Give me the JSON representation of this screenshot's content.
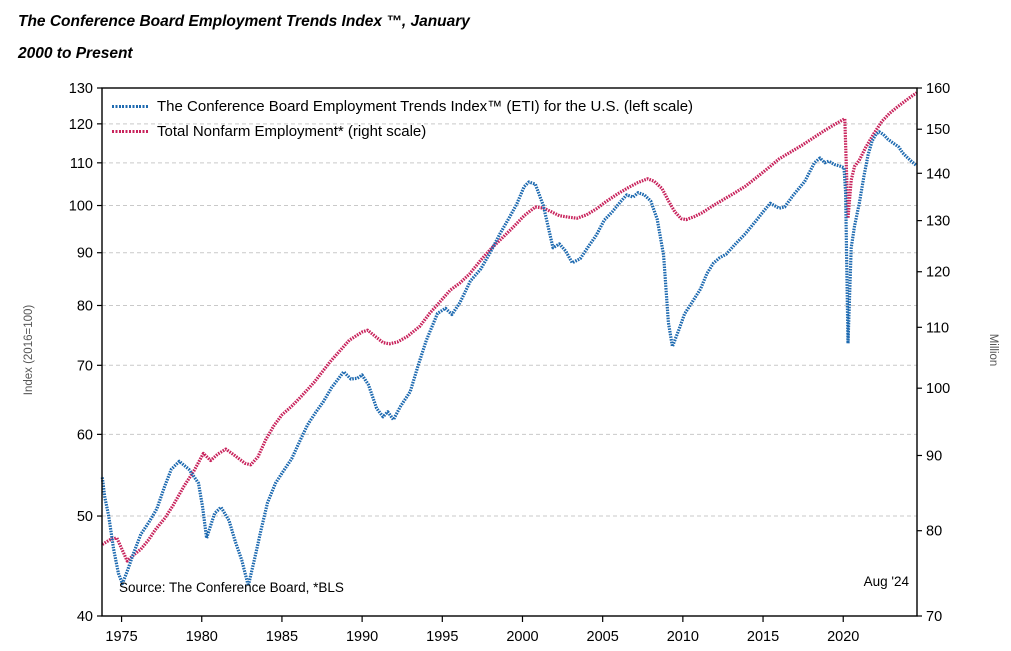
{
  "title": {
    "line1": "The Conference Board Employment Trends Index ™, January",
    "line2": "2000 to Present"
  },
  "legend": {
    "items": [
      {
        "label": "The Conference Board Employment Trends Index™ (ETI) for the U.S. (left scale)",
        "color": "#1e6ab0"
      },
      {
        "label": "Total Nonfarm Employment* (right scale)",
        "color": "#c8235c"
      }
    ]
  },
  "source_note": "Source: The Conference Board, *BLS",
  "end_label": "Aug '24",
  "colors": {
    "eti_line": "#1e6ab0",
    "nonfarm_line": "#c8235c",
    "gridline": "#c9c9c9",
    "axis_box": "#000000"
  },
  "chart_data": {
    "type": "line",
    "title": "The Conference Board Employment Trends Index ™, January 2000 to Present",
    "x_axis": {
      "min": 1973.78,
      "max": 2024.6,
      "ticks": [
        1975,
        1980,
        1985,
        1990,
        1995,
        2000,
        2005,
        2010,
        2015,
        2020
      ]
    },
    "left_axis": {
      "label": "Index (2016=100)",
      "scale": "log",
      "min": 40,
      "max": 130,
      "ticks": [
        130,
        120,
        110,
        100,
        90,
        80,
        70,
        60,
        50,
        40
      ]
    },
    "right_axis": {
      "label": "Million",
      "scale": "log",
      "min": 70,
      "max": 160,
      "ticks": [
        160,
        150,
        140,
        130,
        120,
        110,
        100,
        90,
        80,
        70
      ]
    },
    "gridlines": {
      "axis": "left",
      "values": [
        120,
        110,
        100,
        90,
        80,
        70,
        60,
        50
      ],
      "style": "dashed"
    },
    "legend_position": "top-left-inside",
    "series": [
      {
        "name": "The Conference Board Employment Trends Index™ (ETI) for the U.S. (left scale)",
        "axis": "left",
        "color": "#1e6ab0",
        "points": [
          [
            1973.8,
            54.5
          ],
          [
            1973.95,
            52.2
          ],
          [
            1974.2,
            50.0
          ],
          [
            1974.5,
            46.5
          ],
          [
            1974.8,
            44.0
          ],
          [
            1975.05,
            43.0
          ],
          [
            1975.35,
            44.2
          ],
          [
            1975.7,
            45.8
          ],
          [
            1976.2,
            48.0
          ],
          [
            1976.7,
            49.3
          ],
          [
            1977.2,
            50.8
          ],
          [
            1977.7,
            53.5
          ],
          [
            1978.1,
            55.5
          ],
          [
            1978.6,
            56.5
          ],
          [
            1979.2,
            55.5
          ],
          [
            1979.8,
            53.8
          ],
          [
            1980.05,
            51.0
          ],
          [
            1980.3,
            47.6
          ],
          [
            1980.8,
            50.3
          ],
          [
            1981.2,
            51.0
          ],
          [
            1981.7,
            49.5
          ],
          [
            1982.1,
            47.2
          ],
          [
            1982.5,
            45.3
          ],
          [
            1982.9,
            42.8
          ],
          [
            1983.3,
            45.5
          ],
          [
            1983.7,
            48.5
          ],
          [
            1984.1,
            51.5
          ],
          [
            1984.6,
            53.8
          ],
          [
            1985.1,
            55.3
          ],
          [
            1985.6,
            56.8
          ],
          [
            1986.2,
            59.5
          ],
          [
            1986.6,
            61.3
          ],
          [
            1987.1,
            63.0
          ],
          [
            1987.6,
            64.6
          ],
          [
            1988.1,
            66.6
          ],
          [
            1988.85,
            69.0
          ],
          [
            1989.3,
            67.9
          ],
          [
            1989.7,
            68.0
          ],
          [
            1990.0,
            68.5
          ],
          [
            1990.4,
            67.0
          ],
          [
            1990.9,
            63.6
          ],
          [
            1991.3,
            62.4
          ],
          [
            1991.6,
            63.1
          ],
          [
            1991.95,
            62.0
          ],
          [
            1992.4,
            63.9
          ],
          [
            1993.0,
            66.0
          ],
          [
            1993.5,
            70.0
          ],
          [
            1994.0,
            74.0
          ],
          [
            1994.7,
            78.6
          ],
          [
            1995.2,
            79.5
          ],
          [
            1995.6,
            78.4
          ],
          [
            1996.1,
            80.5
          ],
          [
            1996.75,
            84.5
          ],
          [
            1997.4,
            86.8
          ],
          [
            1998.0,
            90.1
          ],
          [
            1998.6,
            93.9
          ],
          [
            1999.2,
            97.5
          ],
          [
            1999.65,
            100.4
          ],
          [
            2000.1,
            104.3
          ],
          [
            2000.4,
            105.4
          ],
          [
            2000.8,
            104.9
          ],
          [
            2001.3,
            100.0
          ],
          [
            2001.9,
            91.0
          ],
          [
            2002.3,
            91.8
          ],
          [
            2002.7,
            90.3
          ],
          [
            2003.1,
            88.0
          ],
          [
            2003.6,
            88.8
          ],
          [
            2004.1,
            91.2
          ],
          [
            2004.6,
            93.6
          ],
          [
            2005.1,
            96.8
          ],
          [
            2005.6,
            98.6
          ],
          [
            2006.1,
            100.8
          ],
          [
            2006.5,
            102.4
          ],
          [
            2006.9,
            101.9
          ],
          [
            2007.2,
            102.9
          ],
          [
            2007.6,
            102.4
          ],
          [
            2008.0,
            101.0
          ],
          [
            2008.4,
            97.0
          ],
          [
            2008.8,
            89.5
          ],
          [
            2009.1,
            77.0
          ],
          [
            2009.35,
            73.0
          ],
          [
            2009.75,
            75.8
          ],
          [
            2010.1,
            78.5
          ],
          [
            2010.6,
            80.7
          ],
          [
            2011.1,
            83.0
          ],
          [
            2011.5,
            85.9
          ],
          [
            2011.9,
            87.9
          ],
          [
            2012.3,
            89.0
          ],
          [
            2012.7,
            89.7
          ],
          [
            2013.2,
            91.5
          ],
          [
            2013.9,
            93.9
          ],
          [
            2014.5,
            96.4
          ],
          [
            2015.1,
            99.0
          ],
          [
            2015.45,
            100.5
          ],
          [
            2016.0,
            99.4
          ],
          [
            2016.35,
            99.7
          ],
          [
            2016.9,
            102.4
          ],
          [
            2017.6,
            105.5
          ],
          [
            2018.2,
            110.0
          ],
          [
            2018.55,
            111.2
          ],
          [
            2018.85,
            110.0
          ],
          [
            2019.1,
            110.4
          ],
          [
            2019.45,
            109.6
          ],
          [
            2019.8,
            109.2
          ],
          [
            2020.05,
            108.8
          ],
          [
            2020.15,
            103.0
          ],
          [
            2020.3,
            73.5
          ],
          [
            2020.5,
            91.0
          ],
          [
            2020.7,
            95.5
          ],
          [
            2021.0,
            100.5
          ],
          [
            2021.3,
            107.0
          ],
          [
            2021.55,
            112.0
          ],
          [
            2021.8,
            115.5
          ],
          [
            2022.05,
            117.3
          ],
          [
            2022.25,
            117.9
          ],
          [
            2022.5,
            117.2
          ],
          [
            2022.8,
            115.9
          ],
          [
            2023.1,
            115.0
          ],
          [
            2023.45,
            114.0
          ],
          [
            2023.7,
            112.5
          ],
          [
            2024.0,
            111.3
          ],
          [
            2024.3,
            110.2
          ],
          [
            2024.58,
            109.3
          ]
        ]
      },
      {
        "name": "Total Nonfarm Employment* (right scale)",
        "axis": "right",
        "color": "#c8235c",
        "points": [
          [
            1973.8,
            78.3
          ],
          [
            1974.3,
            78.9
          ],
          [
            1974.7,
            79.1
          ],
          [
            1975.0,
            77.8
          ],
          [
            1975.35,
            76.3
          ],
          [
            1975.8,
            77.1
          ],
          [
            1976.2,
            77.7
          ],
          [
            1976.7,
            78.9
          ],
          [
            1977.1,
            80.1
          ],
          [
            1977.7,
            81.6
          ],
          [
            1978.2,
            83.2
          ],
          [
            1978.9,
            85.8
          ],
          [
            1979.5,
            87.8
          ],
          [
            1980.1,
            90.3
          ],
          [
            1980.55,
            89.3
          ],
          [
            1981.0,
            90.2
          ],
          [
            1981.5,
            90.9
          ],
          [
            1982.0,
            90.1
          ],
          [
            1982.7,
            88.9
          ],
          [
            1983.05,
            88.7
          ],
          [
            1983.5,
            89.8
          ],
          [
            1984.0,
            92.3
          ],
          [
            1984.5,
            94.3
          ],
          [
            1985.0,
            95.9
          ],
          [
            1985.6,
            97.2
          ],
          [
            1986.2,
            98.7
          ],
          [
            1987.0,
            100.9
          ],
          [
            1988.0,
            104.2
          ],
          [
            1988.6,
            106.0
          ],
          [
            1989.2,
            107.8
          ],
          [
            1990.0,
            109.2
          ],
          [
            1990.35,
            109.5
          ],
          [
            1990.8,
            108.5
          ],
          [
            1991.3,
            107.4
          ],
          [
            1991.7,
            107.2
          ],
          [
            1992.2,
            107.5
          ],
          [
            1992.8,
            108.4
          ],
          [
            1993.6,
            110.2
          ],
          [
            1994.2,
            112.4
          ],
          [
            1994.8,
            114.3
          ],
          [
            1995.5,
            116.6
          ],
          [
            1996.1,
            117.9
          ],
          [
            1996.7,
            119.6
          ],
          [
            1997.4,
            122.2
          ],
          [
            1998.1,
            124.6
          ],
          [
            1998.8,
            126.7
          ],
          [
            1999.4,
            128.6
          ],
          [
            2000.1,
            131.0
          ],
          [
            2000.8,
            132.8
          ],
          [
            2001.3,
            132.6
          ],
          [
            2001.8,
            131.8
          ],
          [
            2002.3,
            131.0
          ],
          [
            2002.9,
            130.7
          ],
          [
            2003.4,
            130.5
          ],
          [
            2004.0,
            131.2
          ],
          [
            2004.6,
            132.4
          ],
          [
            2005.2,
            133.9
          ],
          [
            2005.9,
            135.5
          ],
          [
            2006.6,
            136.9
          ],
          [
            2007.2,
            138.0
          ],
          [
            2007.8,
            138.8
          ],
          [
            2008.2,
            138.3
          ],
          [
            2008.7,
            136.7
          ],
          [
            2009.1,
            134.1
          ],
          [
            2009.5,
            131.8
          ],
          [
            2009.9,
            130.4
          ],
          [
            2010.2,
            130.2
          ],
          [
            2010.7,
            130.8
          ],
          [
            2011.2,
            131.6
          ],
          [
            2011.8,
            132.9
          ],
          [
            2012.5,
            134.3
          ],
          [
            2013.2,
            135.7
          ],
          [
            2013.9,
            137.2
          ],
          [
            2014.6,
            139.1
          ],
          [
            2015.3,
            141.1
          ],
          [
            2016.0,
            143.2
          ],
          [
            2016.7,
            144.7
          ],
          [
            2017.4,
            146.2
          ],
          [
            2018.1,
            147.9
          ],
          [
            2018.8,
            149.6
          ],
          [
            2019.5,
            151.2
          ],
          [
            2020.1,
            152.5
          ],
          [
            2020.3,
            130.5
          ],
          [
            2020.5,
            138.5
          ],
          [
            2020.7,
            141.5
          ],
          [
            2021.0,
            142.9
          ],
          [
            2021.4,
            145.8
          ],
          [
            2021.9,
            148.9
          ],
          [
            2022.4,
            151.8
          ],
          [
            2022.9,
            153.8
          ],
          [
            2023.4,
            155.4
          ],
          [
            2023.9,
            156.9
          ],
          [
            2024.25,
            157.9
          ],
          [
            2024.58,
            158.8
          ]
        ]
      }
    ]
  }
}
